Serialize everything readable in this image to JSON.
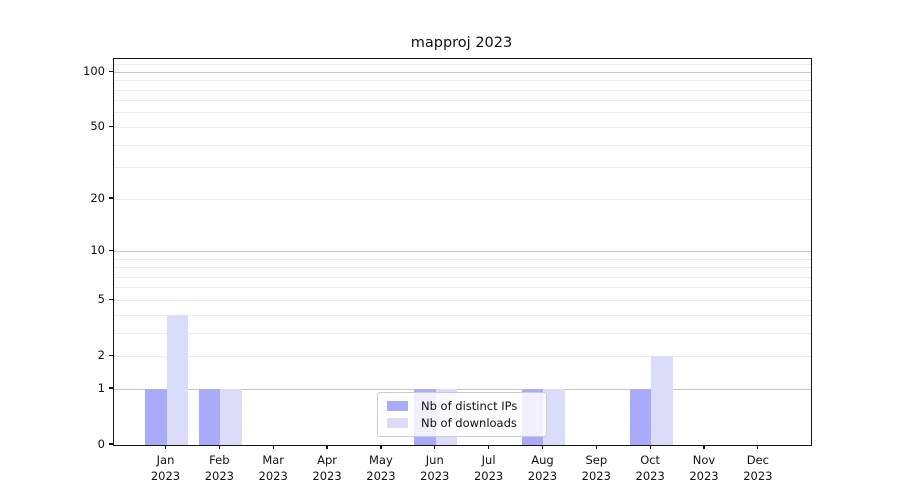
{
  "chart_data": {
    "type": "bar",
    "title": "mapproj 2023",
    "categories": [
      "Jan 2023",
      "Feb 2023",
      "Mar 2023",
      "Apr 2023",
      "May 2023",
      "Jun 2023",
      "Jul 2023",
      "Aug 2023",
      "Sep 2023",
      "Oct 2023",
      "Nov 2023",
      "Dec 2023"
    ],
    "series": [
      {
        "name": "Nb of distinct IPs",
        "color": "#aaaafa",
        "values": [
          1,
          1,
          0,
          0,
          0,
          1,
          0,
          1,
          0,
          1,
          0,
          0
        ]
      },
      {
        "name": "Nb of downloads",
        "color": "#dbdbfa",
        "values": [
          4,
          1,
          0,
          0,
          0,
          1,
          0,
          1,
          0,
          2,
          0,
          0
        ]
      }
    ],
    "yscale": "log10(1+v)",
    "ylim": [
      0,
      118
    ],
    "yticks": [
      0,
      1,
      2,
      5,
      10,
      20,
      50,
      100
    ],
    "grid": true,
    "grid_major_values": [
      1,
      10,
      100
    ],
    "grid_minor_values": [
      2,
      3,
      4,
      5,
      6,
      7,
      8,
      9,
      20,
      30,
      40,
      50,
      60,
      70,
      80,
      90,
      110
    ],
    "legend": {
      "position": "lower center"
    },
    "colors": {
      "grid_major": "#c6c6c6",
      "grid_minor": "#ebebeb",
      "spine": "#151515",
      "text": "#111111",
      "legend_border": "#cccccc"
    }
  }
}
